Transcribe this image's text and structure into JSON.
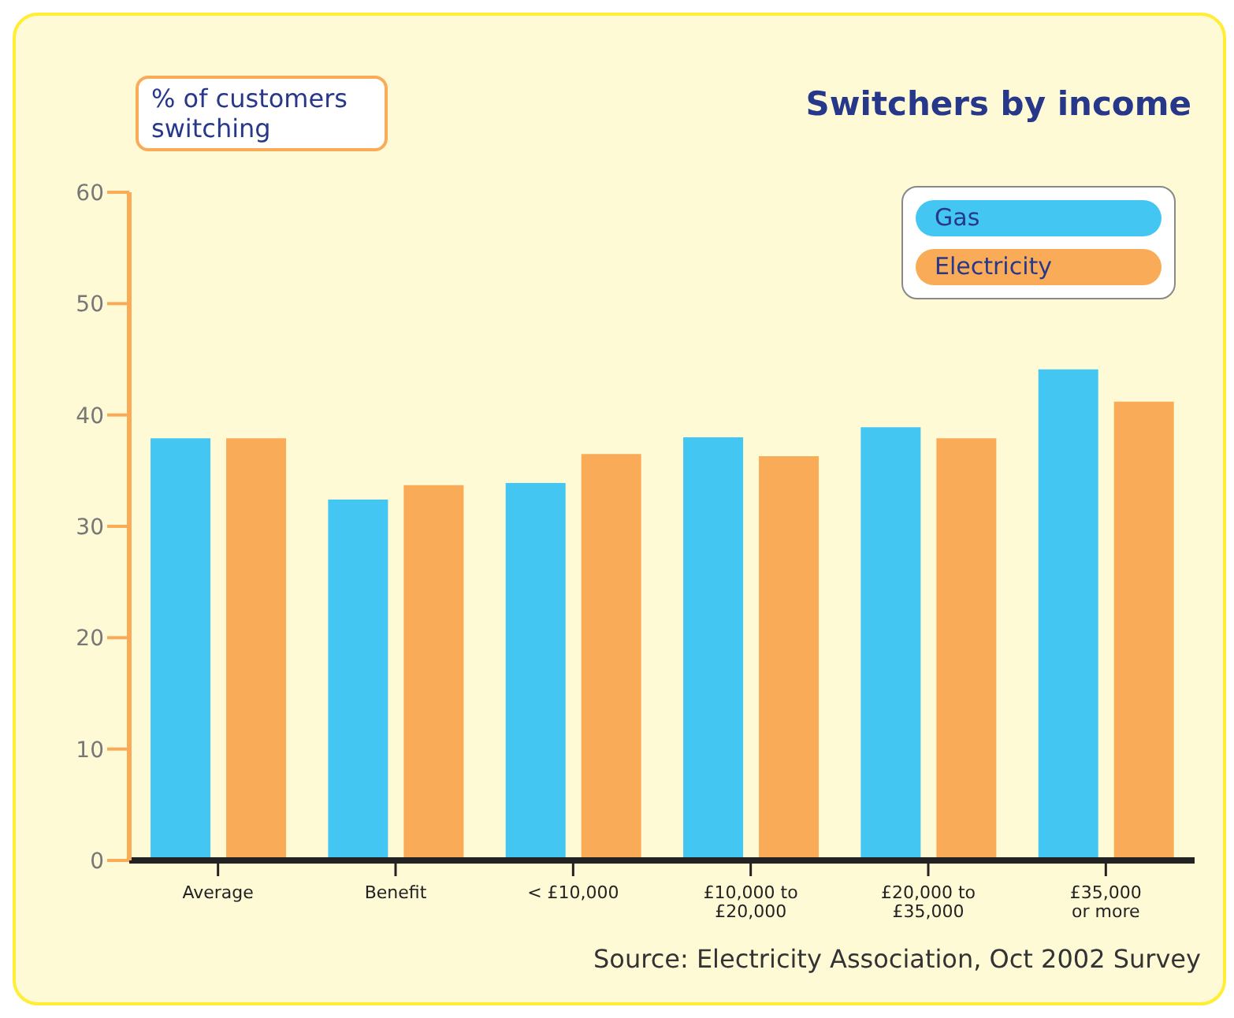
{
  "chart_data": {
    "type": "bar",
    "title": "Switchers by income",
    "ylabel": "% of customers switching",
    "categories": [
      "Average",
      "Benefit",
      "< £10,000",
      "£10,000 to\n£20,000",
      "£20,000 to\n£35,000",
      "£35,000\nor more"
    ],
    "series": [
      {
        "name": "Gas",
        "color": "#44c6f2",
        "values": [
          37.9,
          32.4,
          33.9,
          38.0,
          38.9,
          44.1
        ]
      },
      {
        "name": "Electricity",
        "color": "#f9ab57",
        "values": [
          37.9,
          33.7,
          36.5,
          36.3,
          37.9,
          41.2
        ]
      }
    ],
    "ylim": [
      0,
      60
    ],
    "yticks": [
      0,
      10,
      20,
      30,
      40,
      50,
      60
    ],
    "legend": "top right",
    "annotations": [
      "Source: Electricity Association, Oct 2002 Survey"
    ]
  }
}
